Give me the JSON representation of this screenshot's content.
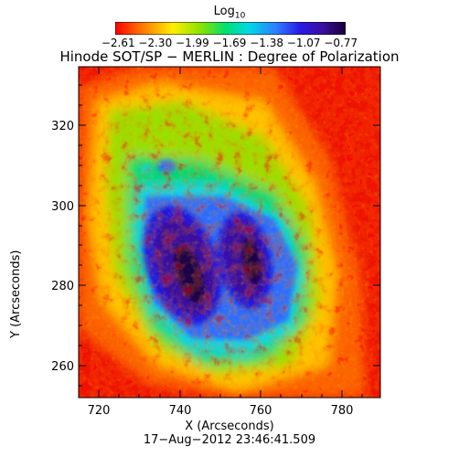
{
  "colorbar": {
    "title": "Log",
    "title_sub": "10",
    "ticks_text": "−2.61 −2.30 −1.99 −1.69 −1.38 −1.07 −0.77",
    "colors": [
      "#ff0000",
      "#ff7a00",
      "#ffee00",
      "#8be300",
      "#00e070",
      "#00d8e8",
      "#2f7cff",
      "#2a1ae8",
      "#3a0ea0",
      "#180038"
    ]
  },
  "title": "Hinode SOT/SP − MERLIN : Degree of Polarization",
  "axes": {
    "x_label": "X (Arcseconds)",
    "y_label": "Y (Arcseconds)",
    "x_ticks": [
      "720",
      "740",
      "760",
      "780"
    ],
    "y_ticks": [
      "260",
      "280",
      "300",
      "320"
    ]
  },
  "timestamp": "17−Aug−2012 23:46:41.509"
}
